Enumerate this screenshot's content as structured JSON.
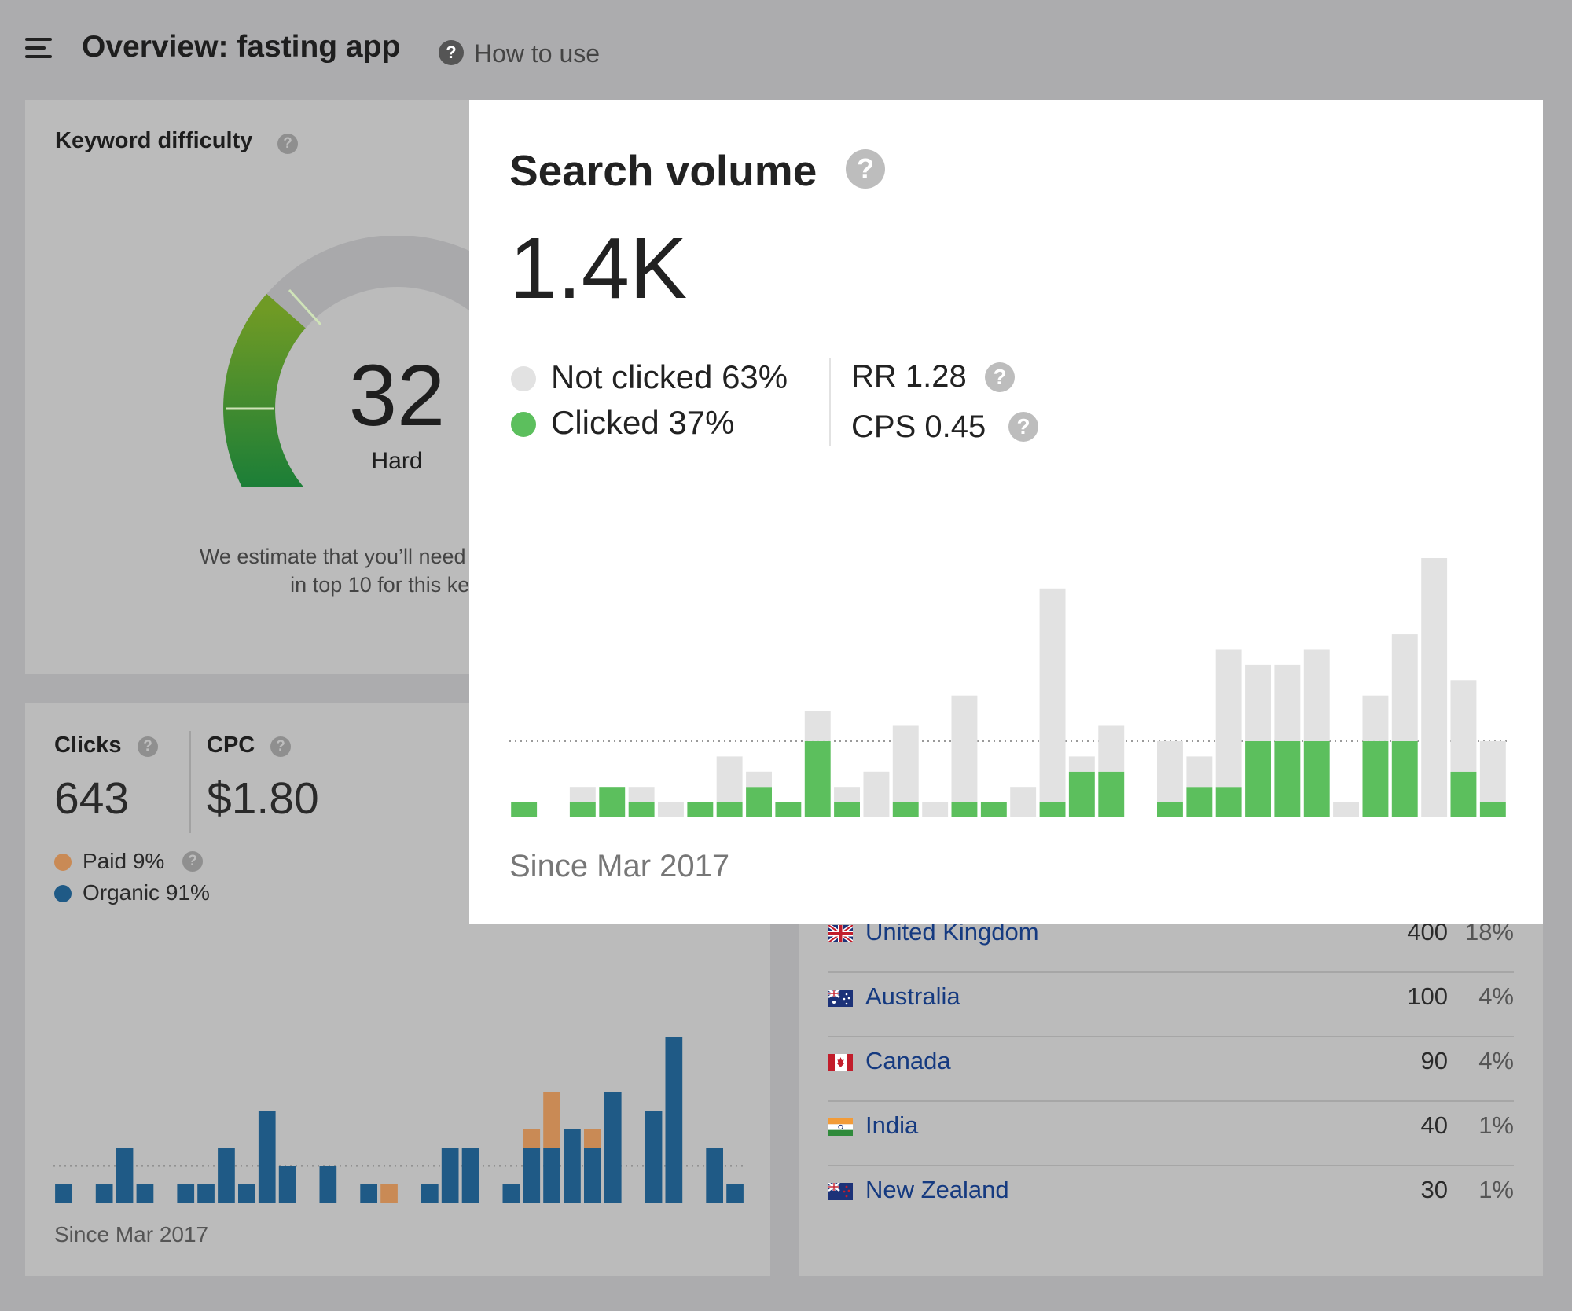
{
  "header": {
    "title": "Overview: fasting app",
    "help_label": "How to use"
  },
  "keyword_difficulty": {
    "title": "Keyword difficulty",
    "score": "32",
    "level": "Hard",
    "gauge_fraction": 0.32,
    "description_line1": "We estimate that you’ll need backlinks f",
    "description_line2": "in top 10 for this key"
  },
  "clicks": {
    "title": "Clicks",
    "value": "643",
    "cpc_title": "CPC",
    "cpc_value": "$1.80",
    "paid_label": "Paid 9%",
    "organic_label": "Organic 91%",
    "since": "Since Mar 2017",
    "colors": {
      "paid": "#c98a55",
      "organic": "#1f5a86"
    }
  },
  "countries": {
    "rows": [
      {
        "flag": "uk-flag-icon",
        "name": "United Kingdom",
        "volume": "400",
        "percent": "18%"
      },
      {
        "flag": "australia-flag-icon",
        "name": "Australia",
        "volume": "100",
        "percent": "4%"
      },
      {
        "flag": "canada-flag-icon",
        "name": "Canada",
        "volume": "90",
        "percent": "4%"
      },
      {
        "flag": "india-flag-icon",
        "name": "India",
        "volume": "40",
        "percent": "1%"
      },
      {
        "flag": "new-zealand-flag-icon",
        "name": "New Zealand",
        "volume": "30",
        "percent": "1%"
      }
    ]
  },
  "search_volume": {
    "title": "Search volume",
    "value": "1.4K",
    "not_clicked_label": "Not clicked 63%",
    "clicked_label": "Clicked 37%",
    "rr_label": "RR 1.28",
    "cps_label": "CPS 0.45",
    "since": "Since Mar 2017",
    "colors": {
      "clicked": "#5cbf5d",
      "not_clicked": "#e2e2e2"
    }
  },
  "chart_data": [
    {
      "type": "bar",
      "name": "search-volume-history",
      "stacked": true,
      "y_max": 17,
      "reference_line": 5,
      "series": [
        {
          "name": "Clicked",
          "values": [
            1,
            0,
            1,
            2,
            1,
            0,
            1,
            1,
            2,
            1,
            5,
            1,
            0,
            1,
            0,
            1,
            1,
            0,
            1,
            3,
            3,
            0,
            1,
            2,
            2,
            5,
            5,
            5,
            0,
            5,
            5,
            0,
            3,
            1
          ]
        },
        {
          "name": "Not clicked",
          "values": [
            0,
            0,
            1,
            0,
            1,
            1,
            0,
            3,
            1,
            0,
            2,
            1,
            3,
            5,
            1,
            7,
            0,
            2,
            14,
            1,
            3,
            0,
            4,
            2,
            9,
            5,
            5,
            6,
            1,
            3,
            7,
            17,
            6,
            4
          ]
        }
      ]
    },
    {
      "type": "bar",
      "name": "clicks-history",
      "stacked": true,
      "y_max": 9,
      "reference_line": 2,
      "series": [
        {
          "name": "Organic 91%",
          "values": [
            1,
            0,
            1,
            3,
            1,
            0,
            1,
            1,
            3,
            1,
            5,
            2,
            0,
            2,
            0,
            1,
            0,
            0,
            1,
            3,
            3,
            0,
            1,
            3,
            3,
            4,
            3,
            6,
            0,
            5,
            9,
            0,
            3,
            1
          ]
        },
        {
          "name": "Paid 9%",
          "values": [
            0,
            0,
            0,
            0,
            0,
            0,
            0,
            0,
            0,
            0,
            0,
            0,
            0,
            0,
            0,
            0,
            1,
            0,
            0,
            0,
            0,
            0,
            0,
            1,
            3,
            0,
            1,
            0,
            0,
            0,
            0,
            0,
            0,
            0
          ]
        }
      ]
    }
  ]
}
